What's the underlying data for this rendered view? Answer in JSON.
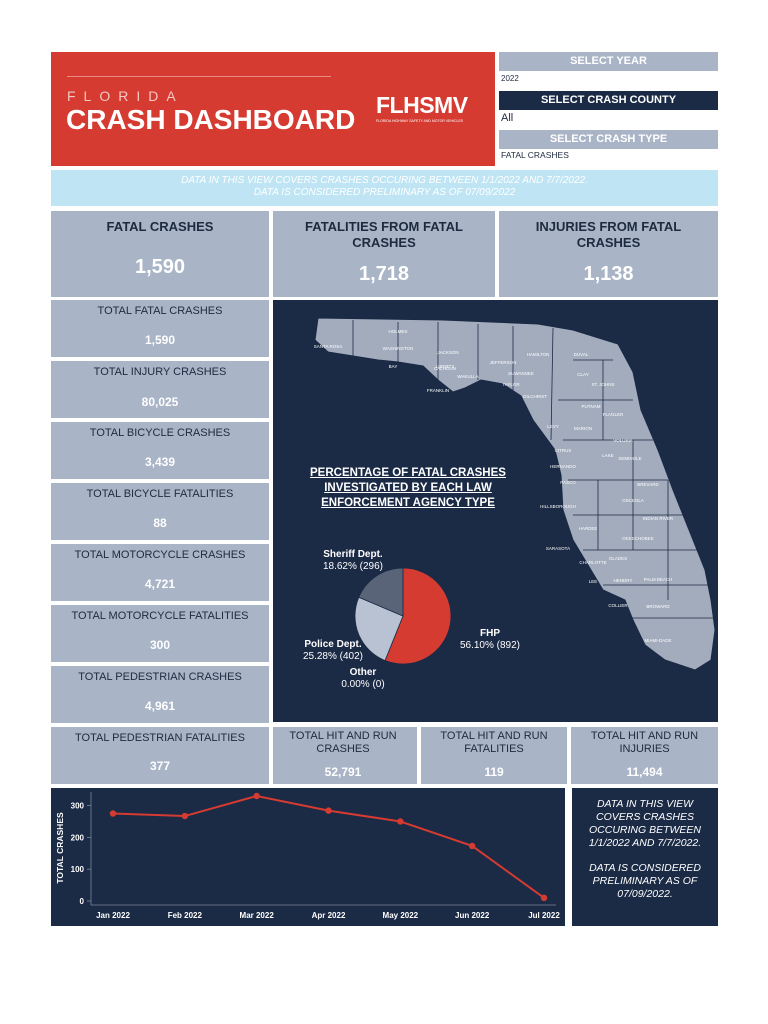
{
  "header": {
    "state": "FLORIDA",
    "title": "CRASH DASHBOARD",
    "logo": "FLHSMV",
    "logo_sub": "FLORIDA HIGHWAY SAFETY AND MOTOR VEHICLES",
    "colors": {
      "red": "#d63b32",
      "navy": "#1b2a45",
      "gray": "#a9b4c6"
    }
  },
  "filters": {
    "year_label": "SELECT YEAR",
    "year_value": "2022",
    "county_label": "SELECT CRASH COUNTY",
    "county_value": "All",
    "type_label": "SELECT CRASH TYPE",
    "type_value": "FATAL CRASHES"
  },
  "banner": {
    "line1": "DATA IN THIS VIEW COVERS CRASHES OCCURING BETWEEN 1/1/2022 AND 7/7/2022.",
    "line2": "DATA IS CONSIDERED PRELIMINARY AS OF 07/09/2022"
  },
  "kpis": [
    {
      "title": "FATAL CRASHES",
      "value": "1,590"
    },
    {
      "title": "FATALITIES FROM FATAL CRASHES",
      "value": "1,718"
    },
    {
      "title": "INJURIES FROM FATAL CRASHES",
      "value": "1,138"
    }
  ],
  "stats": [
    {
      "title": "TOTAL FATAL CRASHES",
      "value": "1,590"
    },
    {
      "title": "TOTAL INJURY CRASHES",
      "value": "80,025"
    },
    {
      "title": "TOTAL BICYCLE CRASHES",
      "value": "3,439"
    },
    {
      "title": "TOTAL BICYCLE FATALITIES",
      "value": "88"
    },
    {
      "title": "TOTAL MOTORCYCLE CRASHES",
      "value": "4,721"
    },
    {
      "title": "TOTAL MOTORCYCLE FATALITIES",
      "value": "300"
    },
    {
      "title": "TOTAL PEDESTRIAN CRASHES",
      "value": "4,961"
    },
    {
      "title": "TOTAL PEDESTRIAN FATALITIES",
      "value": "377"
    }
  ],
  "hitrun": [
    {
      "title": "TOTAL HIT AND RUN CRASHES",
      "value": "52,791"
    },
    {
      "title": "TOTAL HIT AND RUN FATALITIES",
      "value": "119"
    },
    {
      "title": "TOTAL HIT AND RUN INJURIES",
      "value": "11,494"
    }
  ],
  "map": {
    "title": "PERCENTAGE OF FATAL CRASHES INVESTIGATED BY EACH LAW ENFORCEMENT AGENCY TYPE",
    "counties": [
      "SANTA ROSA",
      "HOLMES",
      "WASHINGTON",
      "JACKSON",
      "CALHOUN",
      "JEFFERSON",
      "HAMILTON",
      "DUVAL",
      "BAY",
      "LIBERTY",
      "WAKULLA",
      "TAYLOR",
      "SUWANNEE",
      "CLAY",
      "ST. JOHNS",
      "FRANKLIN",
      "GILCHRIST",
      "PUTNAM",
      "FLAGLER",
      "LEVY",
      "MARION",
      "VOLUSIA",
      "CITRUS",
      "LAKE",
      "SEMINOLE",
      "HERNANDO",
      "PASCO",
      "BREVARD",
      "OSCEOLA",
      "HILLSBOROUGH",
      "INDIAN RIVER",
      "HARDEE",
      "OKEECHOBEE",
      "SARASOTA",
      "CHARLOTTE",
      "GLADES",
      "LEE",
      "HENDRY",
      "PALM BEACH",
      "COLLIER",
      "BROWARD",
      "MIAMI-DADE"
    ]
  },
  "pie": {
    "slices": [
      {
        "name": "FHP",
        "label": "FHP",
        "pct_label": "56.10% (892)",
        "value": 892,
        "color": "#d63b32"
      },
      {
        "name": "Police Dept.",
        "label": "Police Dept.",
        "pct_label": "25.28% (402)",
        "value": 402,
        "color": "#b8c2d3"
      },
      {
        "name": "Other",
        "label": "Other",
        "pct_label": "0.00% (0)",
        "value": 0,
        "color": "#8a94a6"
      },
      {
        "name": "Sheriff Dept.",
        "label": "Sheriff Dept.",
        "pct_label": "18.62% (296)",
        "value": 296,
        "color": "#5a6478"
      }
    ]
  },
  "notes": {
    "line1": "DATA IN THIS VIEW COVERS CRASHES OCCURING BETWEEN 1/1/2022 AND 7/7/2022.",
    "line2": "DATA IS CONSIDERED PRELIMINARY AS OF 07/09/2022."
  },
  "chart_data": {
    "type": "line",
    "categories": [
      "Jan 2022",
      "Feb 2022",
      "Mar 2022",
      "Apr 2022",
      "May 2022",
      "Jun 2022",
      "Jul 2022"
    ],
    "values": [
      275,
      267,
      330,
      284,
      250,
      173,
      10
    ],
    "ylabel": "TOTAL CRASHES",
    "xlabel": "",
    "yticks": [
      0,
      100,
      200,
      300
    ],
    "ylim": [
      0,
      330
    ],
    "color": "#d63b32"
  }
}
